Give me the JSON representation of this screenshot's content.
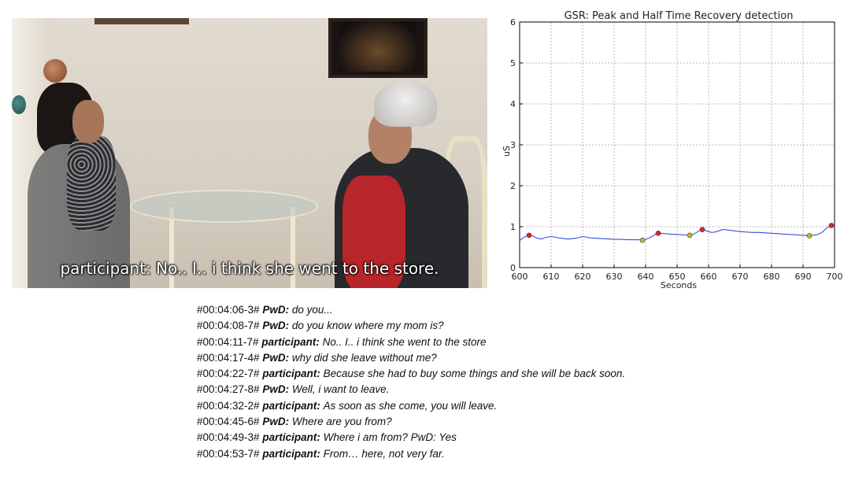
{
  "video": {
    "subtitle": "participant: No.. I.. i think she went to the store."
  },
  "chart_data": {
    "type": "line",
    "title": "GSR: Peak and Half Time Recovery detection",
    "xlabel": "Seconds",
    "ylabel": "uS",
    "xlim": [
      600,
      700
    ],
    "ylim": [
      0,
      6
    ],
    "grid": true,
    "x_ticks": [
      "600",
      "610",
      "620",
      "630",
      "640",
      "650",
      "660",
      "670",
      "680",
      "690",
      "700"
    ],
    "y_ticks": [
      "0",
      "1",
      "2",
      "3",
      "4",
      "5",
      "6"
    ],
    "series": [
      {
        "line_color": "#3b4fd6",
        "points": [
          [
            600,
            0.66
          ],
          [
            601,
            0.72
          ],
          [
            602,
            0.77
          ],
          [
            603,
            0.79
          ],
          [
            604,
            0.78
          ],
          [
            605,
            0.74
          ],
          [
            606,
            0.71
          ],
          [
            607,
            0.7
          ],
          [
            608,
            0.73
          ],
          [
            609,
            0.75
          ],
          [
            610,
            0.76
          ],
          [
            611,
            0.75
          ],
          [
            612,
            0.73
          ],
          [
            613,
            0.72
          ],
          [
            614,
            0.71
          ],
          [
            615,
            0.7
          ],
          [
            616,
            0.7
          ],
          [
            617,
            0.71
          ],
          [
            618,
            0.72
          ],
          [
            619,
            0.74
          ],
          [
            620,
            0.76
          ],
          [
            621,
            0.75
          ],
          [
            622,
            0.73
          ],
          [
            624,
            0.72
          ],
          [
            626,
            0.71
          ],
          [
            628,
            0.7
          ],
          [
            630,
            0.69
          ],
          [
            632,
            0.69
          ],
          [
            634,
            0.68
          ],
          [
            636,
            0.68
          ],
          [
            638,
            0.68
          ],
          [
            639,
            0.67
          ],
          [
            640,
            0.69
          ],
          [
            641,
            0.72
          ],
          [
            642,
            0.76
          ],
          [
            643,
            0.81
          ],
          [
            644,
            0.84
          ],
          [
            645,
            0.84
          ],
          [
            646,
            0.83
          ],
          [
            648,
            0.82
          ],
          [
            650,
            0.81
          ],
          [
            652,
            0.8
          ],
          [
            654,
            0.79
          ],
          [
            655,
            0.81
          ],
          [
            656,
            0.85
          ],
          [
            657,
            0.9
          ],
          [
            658,
            0.93
          ],
          [
            659,
            0.91
          ],
          [
            660,
            0.88
          ],
          [
            661,
            0.86
          ],
          [
            662,
            0.87
          ],
          [
            663,
            0.89
          ],
          [
            664,
            0.92
          ],
          [
            665,
            0.93
          ],
          [
            666,
            0.92
          ],
          [
            668,
            0.9
          ],
          [
            670,
            0.88
          ],
          [
            672,
            0.87
          ],
          [
            674,
            0.86
          ],
          [
            676,
            0.86
          ],
          [
            678,
            0.85
          ],
          [
            680,
            0.84
          ],
          [
            682,
            0.83
          ],
          [
            684,
            0.82
          ],
          [
            686,
            0.81
          ],
          [
            688,
            0.8
          ],
          [
            690,
            0.79
          ],
          [
            692,
            0.78
          ],
          [
            693,
            0.79
          ],
          [
            694,
            0.8
          ],
          [
            695,
            0.82
          ],
          [
            696,
            0.86
          ],
          [
            697,
            0.93
          ],
          [
            698,
            0.99
          ],
          [
            699,
            1.03
          ],
          [
            700,
            1.04
          ]
        ]
      }
    ],
    "markers": {
      "peaks": {
        "color": "#e0242c",
        "points": [
          [
            603,
            0.79
          ],
          [
            644,
            0.84
          ],
          [
            658,
            0.93
          ],
          [
            699,
            1.03
          ]
        ]
      },
      "half_recovery": {
        "color": "#b8c22a",
        "points": [
          [
            639,
            0.67
          ],
          [
            654,
            0.79
          ],
          [
            692,
            0.78
          ]
        ]
      }
    }
  },
  "transcript": [
    {
      "time": "#00:04:06-3#",
      "speaker": "PwD:",
      "text": "do you..."
    },
    {
      "time": "#00:04:08-7#",
      "speaker": "PwD:",
      "text": "do you know where my mom is?"
    },
    {
      "time": "#00:04:11-7#",
      "speaker": "participant:",
      "text": "No.. I.. i think she went to the store"
    },
    {
      "time": "#00:04:17-4#",
      "speaker": "PwD:",
      "text": "why did she leave without me?"
    },
    {
      "time": "#00:04:22-7#",
      "speaker": "participant:",
      "text": "Because she had to buy some things and she will be back soon."
    },
    {
      "time": "#00:04:27-8#",
      "speaker": "PwD:",
      "text": "Well, i want to leave."
    },
    {
      "time": "#00:04:32-2#",
      "speaker": "participant:",
      "text": "As soon as she come, you will leave."
    },
    {
      "time": "#00:04:45-6#",
      "speaker": "PwD:",
      "text": "Where are you from?"
    },
    {
      "time": "#00:04:49-3#",
      "speaker": "participant:",
      "text": "Where i am from? PwD: Yes"
    },
    {
      "time": "#00:04:53-7#",
      "speaker": "participant:",
      "text": "From… here, not very far."
    }
  ]
}
